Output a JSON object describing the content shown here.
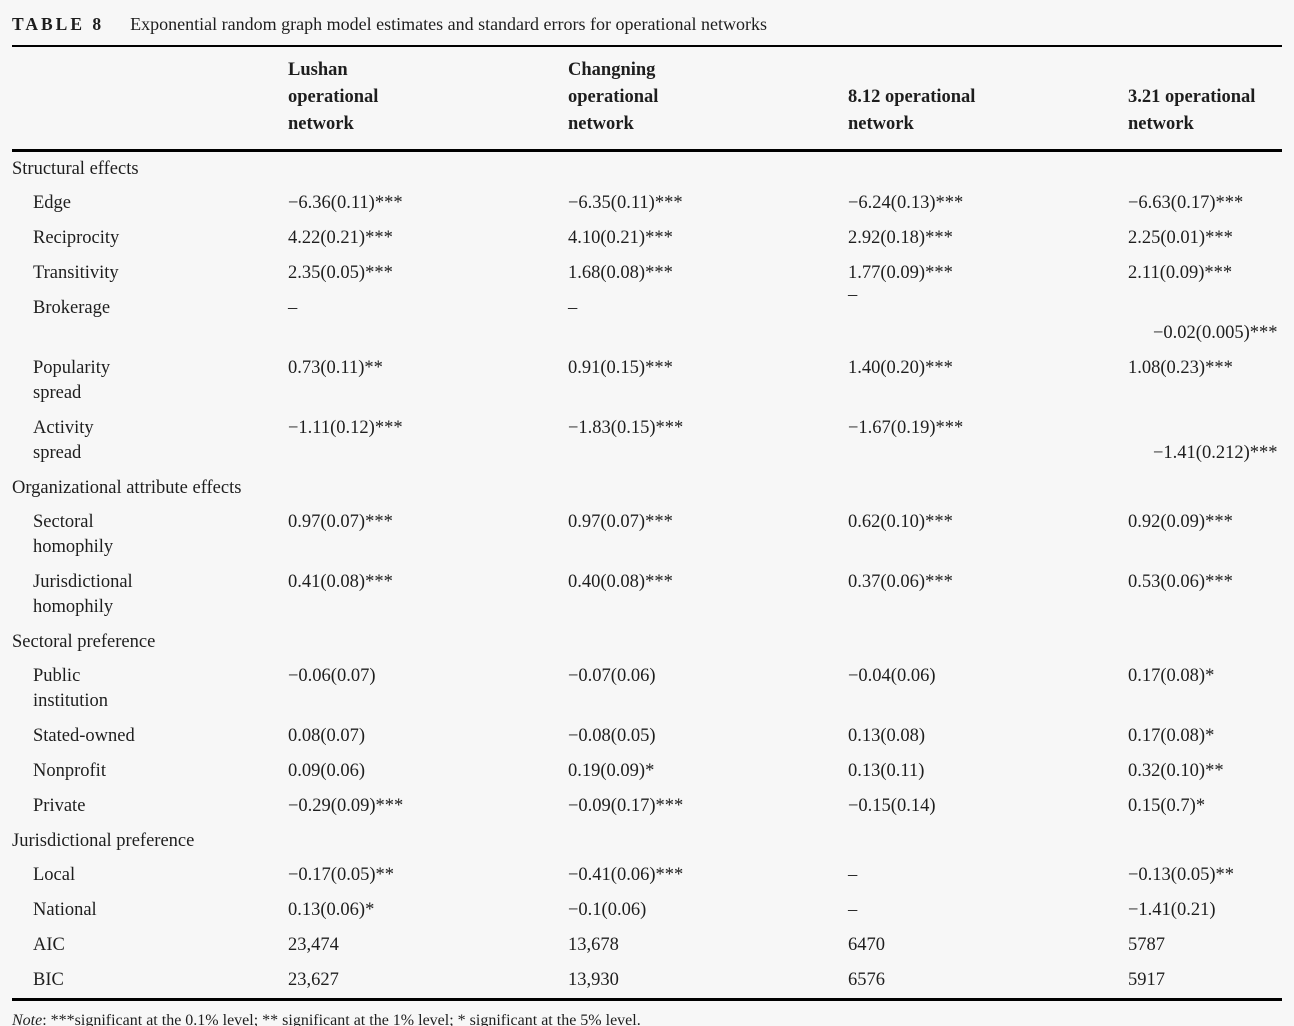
{
  "caption": {
    "label": "TABLE 8",
    "title": "Exponential random graph model estimates and standard errors for operational networks"
  },
  "columns": [
    {
      "id": "lushan",
      "lines": [
        "Lushan",
        "operational",
        "network"
      ]
    },
    {
      "id": "changning",
      "lines": [
        "Changning",
        "operational",
        "network"
      ]
    },
    {
      "id": "net-8-12",
      "lines": [
        "8.12 operational",
        "network"
      ]
    },
    {
      "id": "net-3-21",
      "lines": [
        "3.21 operational",
        "network"
      ]
    }
  ],
  "sections": [
    {
      "id": "structural-effects",
      "header": "Structural effects",
      "rows": [
        {
          "id": "edge",
          "label": [
            "Edge"
          ],
          "values": [
            "−6.36(0.11)***",
            "−6.35(0.11)***",
            "−6.24(0.13)***",
            "−6.63(0.17)***"
          ]
        },
        {
          "id": "reciprocity",
          "label": [
            "Reciprocity"
          ],
          "values": [
            "4.22(0.21)***",
            "4.10(0.21)***",
            "2.92(0.18)***",
            "2.25(0.01)***"
          ]
        },
        {
          "id": "transitivity",
          "label": [
            "Transitivity"
          ],
          "values": [
            "2.35(0.05)***",
            "1.68(0.08)***",
            "1.77(0.09)***",
            "2.11(0.09)***"
          ]
        },
        {
          "id": "brokerage",
          "label": [
            "Brokerage"
          ],
          "values": [
            "–",
            "–",
            "–",
            "−0.02(0.005)***"
          ],
          "cell_styles": [
            null,
            null,
            "raised",
            "dropped"
          ]
        },
        {
          "id": "popularity-spread",
          "label": [
            "Popularity",
            "spread"
          ],
          "values": [
            "0.73(0.11)**",
            "0.91(0.15)***",
            "1.40(0.20)***",
            "1.08(0.23)***"
          ]
        },
        {
          "id": "activity-spread",
          "label": [
            "Activity",
            "spread"
          ],
          "values": [
            "−1.11(0.12)***",
            "−1.83(0.15)***",
            "−1.67(0.19)***",
            "−1.41(0.212)***"
          ],
          "cell_styles": [
            null,
            null,
            null,
            "dropped"
          ]
        }
      ]
    },
    {
      "id": "organizational-attribute-effects",
      "header": "Organizational attribute effects",
      "rows": [
        {
          "id": "sectoral-homophily",
          "label": [
            "Sectoral",
            "homophily"
          ],
          "values": [
            "0.97(0.07)***",
            "0.97(0.07)***",
            "0.62(0.10)***",
            "0.92(0.09)***"
          ]
        },
        {
          "id": "jurisdictional-homophily",
          "label": [
            "Jurisdictional",
            "homophily"
          ],
          "values": [
            "0.41(0.08)***",
            "0.40(0.08)***",
            "0.37(0.06)***",
            "0.53(0.06)***"
          ]
        }
      ]
    },
    {
      "id": "sectoral-preference",
      "header": "Sectoral preference",
      "rows": [
        {
          "id": "public-institution",
          "label": [
            "Public",
            "institution"
          ],
          "values": [
            "−0.06(0.07)",
            "−0.07(0.06)",
            "−0.04(0.06)",
            "0.17(0.08)*"
          ]
        },
        {
          "id": "stated-owned",
          "label": [
            "Stated-owned"
          ],
          "values": [
            "0.08(0.07)",
            "−0.08(0.05)",
            "0.13(0.08)",
            "0.17(0.08)*"
          ]
        },
        {
          "id": "nonprofit",
          "label": [
            "Nonprofit"
          ],
          "values": [
            "0.09(0.06)",
            "0.19(0.09)*",
            "0.13(0.11)",
            "0.32(0.10)**"
          ]
        },
        {
          "id": "private",
          "label": [
            "Private"
          ],
          "values": [
            "−0.29(0.09)***",
            "−0.09(0.17)***",
            "−0.15(0.14)",
            "0.15(0.7)*"
          ]
        }
      ]
    },
    {
      "id": "jurisdictional-preference",
      "header": "Jurisdictional preference",
      "rows": [
        {
          "id": "local",
          "label": [
            "Local"
          ],
          "values": [
            "−0.17(0.05)**",
            "−0.41(0.06)***",
            "–",
            "−0.13(0.05)**"
          ]
        },
        {
          "id": "national",
          "label": [
            "National"
          ],
          "values": [
            "0.13(0.06)*",
            "−0.1(0.06)",
            "–",
            "−1.41(0.21)"
          ]
        },
        {
          "id": "aic",
          "label": [
            "AIC"
          ],
          "values": [
            "23,474",
            "13,678",
            "6470",
            "5787"
          ]
        },
        {
          "id": "bic",
          "label": [
            "BIC"
          ],
          "values": [
            "23,627",
            "13,930",
            "6576",
            "5917"
          ]
        }
      ]
    }
  ],
  "note": {
    "prefix": "Note",
    "text": ": ***significant at the 0.1% level; ** significant at the 1% level; * significant at the 5% level."
  }
}
